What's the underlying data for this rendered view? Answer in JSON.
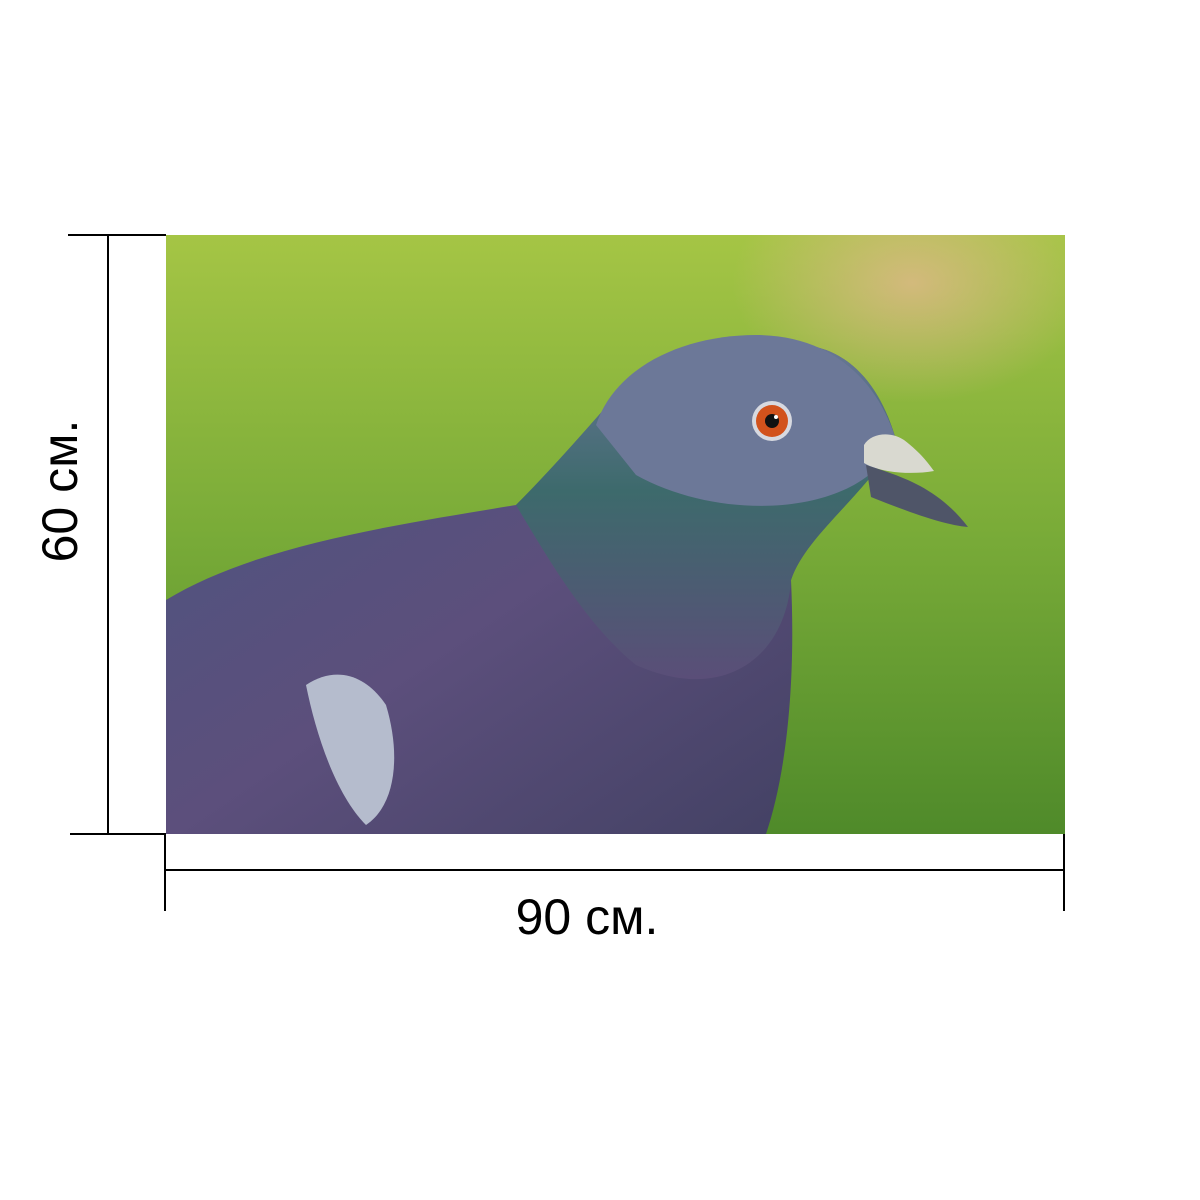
{
  "product": {
    "width_label": "90 см.",
    "height_label": "60 см.",
    "image_subject": "pigeon",
    "colors": {
      "background": "#7fae3a",
      "bird": "#5a6489",
      "eye": "#d2521c",
      "dimension_lines": "#000000"
    }
  }
}
